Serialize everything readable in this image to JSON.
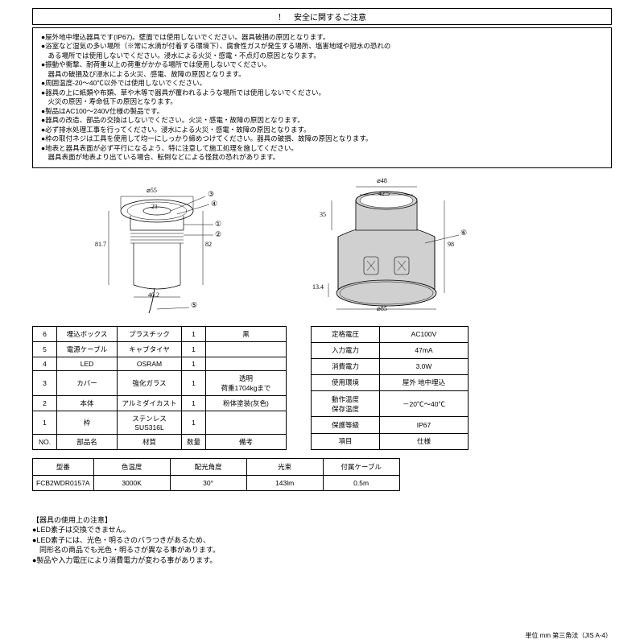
{
  "title": "！　安全に関するご注意",
  "warnings": [
    "●屋外地中埋込器具です(IP67)。壁面では使用しないでください。器具破損の原因となります。",
    "●浴室など湿気の多い場所（※常に水滴が付着する環境下）、腐食性ガスが発生する場所、塩害地域や冠水の恐れの",
    "　ある場所では使用しないでください。浸水による火災・感電・不点灯の原因となります。",
    "●振動や衝撃、耐荷重以上の荷重がかかる場所では使用しないでください。",
    "　器具の破損及び浸水による火災、感電、故障の原因となります。",
    "●周囲温度-20～40℃以外では使用しないでください。",
    "●器具の上に紙類や布類、草や木等で器具が覆われるような場所では使用しないでください。",
    "　火災の原因・寿命低下の原因となります。",
    "●製品はAC100～240V仕様の製品です。",
    "●器具の改造、部品の交換はしないでください。火災・感電・故障の原因となります。",
    "●必ず排水処理工事を行ってください。浸水による火災・感電・故障の原因となります。",
    "●枠の取付ネジは工具を使用して均一にしっかり締めつけてください。器具の破損、故障の原因となります。",
    "●地表と器具表面が必ず平行になるよう、特に注意して施工処理を施してください。",
    "　器具表面が地表より出ている場合、転倒などによる怪我の恐れがあります。"
  ],
  "diagram1": {
    "d55": "⌀55",
    "d21": "21",
    "h82": "82",
    "h817": "81.7",
    "w402": "40.2",
    "callouts": [
      "①",
      "②",
      "③",
      "④",
      "⑤"
    ]
  },
  "diagram2": {
    "d48": "⌀48",
    "w425": "42.5",
    "h35": "35",
    "h98": "98",
    "h134": "13.4",
    "d85": "⌀85",
    "callout": "⑥"
  },
  "parts_table": {
    "headers": [
      "NO.",
      "部品名",
      "材質",
      "数量",
      "備考"
    ],
    "rows": [
      [
        "6",
        "埋込ボックス",
        "プラスチック",
        "1",
        "黒"
      ],
      [
        "5",
        "電源ケーブル",
        "キャブタイヤ",
        "1",
        ""
      ],
      [
        "4",
        "LED",
        "OSRAM",
        "1",
        ""
      ],
      [
        "3",
        "カバー",
        "強化ガラス",
        "1",
        "透明\n荷重1704kgまで"
      ],
      [
        "2",
        "本体",
        "アルミダイカスト",
        "1",
        "粉体塗装(灰色)"
      ],
      [
        "1",
        "枠",
        "ステンレス\nSUS316L",
        "1",
        ""
      ]
    ]
  },
  "spec_table": {
    "headers": [
      "項目",
      "仕様"
    ],
    "rows": [
      [
        "定格電圧",
        "AC100V"
      ],
      [
        "入力電力",
        "47mA"
      ],
      [
        "消費電力",
        "3.0W"
      ],
      [
        "使用環境",
        "屋外 地中埋込"
      ],
      [
        "動作温度\n保存温度",
        "－20℃～40℃"
      ],
      [
        "保護等級",
        "IP67"
      ]
    ]
  },
  "model_table": {
    "headers": [
      "型番",
      "色温度",
      "配光角度",
      "光束",
      "付属ケーブル"
    ],
    "row": [
      "FCB2WDR0157A",
      "3000K",
      "30°",
      "143lm",
      "0.5m"
    ]
  },
  "usage": {
    "heading": "【器具の使用上の注意】",
    "lines": [
      "●LED素子は交換できません。",
      "●LED素子には、光色・明るさのバラつきがあるため、",
      "　同形名の商品でも光色・明るさが異なる事があります。",
      "●製品や入力電圧により消費電力が変わる事があります。"
    ]
  },
  "footer": "単位 mm 第三角法（JIS A-4）"
}
